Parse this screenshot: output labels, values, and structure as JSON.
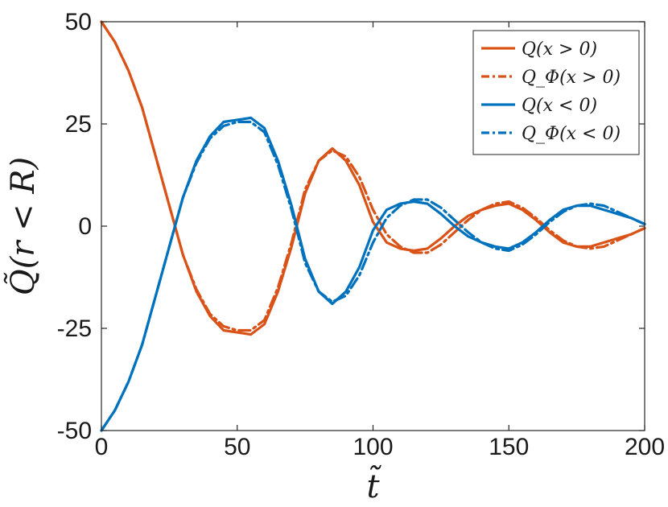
{
  "chart_data": {
    "type": "line",
    "xlabel": "t̃",
    "ylabel": "Q̃(r < R)",
    "xlim": [
      0,
      200
    ],
    "ylim": [
      -50,
      50
    ],
    "xticks": [
      0,
      50,
      100,
      150,
      200
    ],
    "xtick_labels": [
      "0",
      "50",
      "100",
      "150",
      "200"
    ],
    "yticks": [
      50,
      25,
      0,
      -25,
      -50
    ],
    "ytick_labels": [
      "50",
      "25",
      "0",
      "-25",
      "-50"
    ],
    "grid": false,
    "legend_position": "top-right",
    "colors": {
      "orange": "#D95319",
      "blue": "#0072BD"
    },
    "series": [
      {
        "name": "Q(x > 0)",
        "color": "#D95319",
        "style": "solid",
        "x": [
          0,
          5,
          10,
          15,
          20,
          25,
          30,
          35,
          40,
          45,
          50,
          55,
          60,
          65,
          70,
          75,
          80,
          85,
          90,
          95,
          100,
          105,
          110,
          115,
          120,
          125,
          130,
          135,
          140,
          145,
          150,
          155,
          160,
          165,
          170,
          175,
          180,
          185,
          190,
          195,
          200
        ],
        "y": [
          50,
          45,
          38,
          29,
          17,
          5,
          -7,
          -16,
          -22,
          -25.5,
          -26,
          -26.5,
          -24,
          -16,
          -5,
          8,
          16,
          19,
          16,
          10,
          1,
          -4,
          -5.5,
          -6,
          -5.5,
          -3,
          0,
          2.5,
          4,
          5,
          5.5,
          4,
          1.5,
          -1.5,
          -4,
          -5,
          -5,
          -4,
          -3,
          -2,
          -0.5
        ]
      },
      {
        "name": "Q_Φ(x > 0)",
        "color": "#D95319",
        "style": "dashdot",
        "x": [
          0,
          5,
          10,
          15,
          20,
          25,
          30,
          35,
          40,
          45,
          50,
          55,
          60,
          65,
          70,
          75,
          80,
          85,
          90,
          95,
          100,
          105,
          110,
          115,
          120,
          125,
          130,
          135,
          140,
          145,
          150,
          155,
          160,
          165,
          170,
          175,
          180,
          185,
          190,
          195,
          200
        ],
        "y": [
          50,
          45,
          38,
          29,
          17,
          5,
          -7,
          -15.5,
          -21.5,
          -24.5,
          -25.5,
          -25.5,
          -23,
          -15,
          -4,
          9,
          16,
          18.5,
          17,
          12,
          4,
          -2,
          -5,
          -6.5,
          -6.5,
          -4.5,
          -1.5,
          1.5,
          4,
          5.5,
          6,
          4.5,
          2,
          -1,
          -3.5,
          -5,
          -5.5,
          -5,
          -3.5,
          -2,
          -0.5
        ]
      },
      {
        "name": "Q(x < 0)",
        "color": "#0072BD",
        "style": "solid",
        "x": [
          0,
          5,
          10,
          15,
          20,
          25,
          30,
          35,
          40,
          45,
          50,
          55,
          60,
          65,
          70,
          75,
          80,
          85,
          90,
          95,
          100,
          105,
          110,
          115,
          120,
          125,
          130,
          135,
          140,
          145,
          150,
          155,
          160,
          165,
          170,
          175,
          180,
          185,
          190,
          195,
          200
        ],
        "y": [
          -50,
          -45,
          -38,
          -29,
          -17,
          -5,
          7,
          16,
          22,
          25.5,
          26,
          26.5,
          24,
          16,
          5,
          -8,
          -16,
          -19,
          -16,
          -10,
          -1,
          4,
          5.5,
          6,
          5.5,
          3,
          0,
          -2.5,
          -4,
          -5,
          -5.5,
          -4,
          -1.5,
          1.5,
          4,
          5,
          5,
          4,
          3,
          2,
          0.5
        ]
      },
      {
        "name": "Q_Φ(x < 0)",
        "color": "#0072BD",
        "style": "dashdot",
        "x": [
          0,
          5,
          10,
          15,
          20,
          25,
          30,
          35,
          40,
          45,
          50,
          55,
          60,
          65,
          70,
          75,
          80,
          85,
          90,
          95,
          100,
          105,
          110,
          115,
          120,
          125,
          130,
          135,
          140,
          145,
          150,
          155,
          160,
          165,
          170,
          175,
          180,
          185,
          190,
          195,
          200
        ],
        "y": [
          -50,
          -45,
          -38,
          -29,
          -17,
          -5,
          7,
          15.5,
          21.5,
          24.5,
          25.5,
          25.5,
          23,
          15,
          4,
          -9,
          -16,
          -18.5,
          -17,
          -12,
          -4,
          2,
          5,
          6.5,
          6.5,
          4.5,
          1.5,
          -1.5,
          -4,
          -5.5,
          -6,
          -4.5,
          -2,
          1,
          3.5,
          5,
          5.5,
          5,
          3.5,
          2,
          0.5
        ]
      }
    ]
  }
}
